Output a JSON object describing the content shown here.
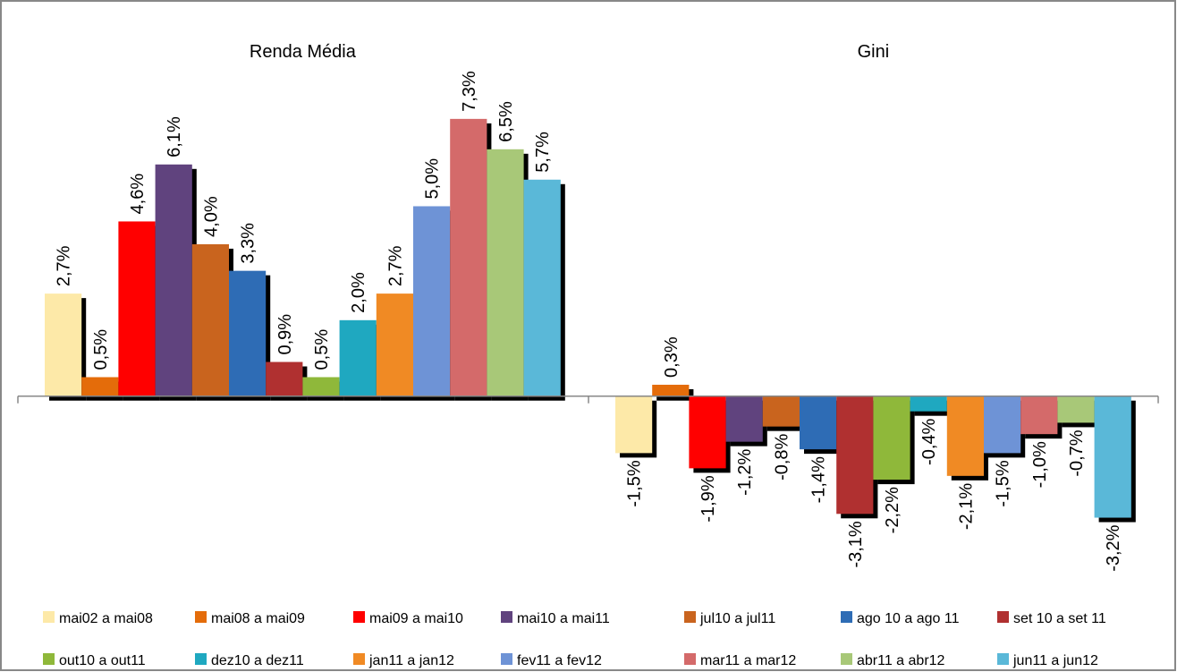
{
  "chart_data": {
    "type": "bar",
    "categories": [
      "Renda Média",
      "Gini"
    ],
    "ylim": [
      -3.8,
      9.7
    ],
    "series": [
      {
        "name": "mai02 a mai08",
        "color": "#fde9a8",
        "values": [
          2.7,
          -1.5
        ],
        "value_labels": [
          "2,7%",
          "-1,5%"
        ]
      },
      {
        "name": "mai08 a mai09",
        "color": "#e46c0a",
        "values": [
          0.5,
          0.3
        ],
        "value_labels": [
          "0,5%",
          "0,3%"
        ]
      },
      {
        "name": "mai09 a mai10",
        "color": "#ff0000",
        "values": [
          4.6,
          -1.9
        ],
        "value_labels": [
          "4,6%",
          "-1,9%"
        ]
      },
      {
        "name": "mai10 a mai11",
        "color": "#60437e",
        "values": [
          6.1,
          -1.2
        ],
        "value_labels": [
          "6,1%",
          "-1,2%"
        ]
      },
      {
        "name": "jul10 a jul11",
        "color": "#c9641e",
        "values": [
          4.0,
          -0.8
        ],
        "value_labels": [
          "4,0%",
          "-0,8%"
        ]
      },
      {
        "name": "ago 10 a ago 11",
        "color": "#2e6cb5",
        "values": [
          3.3,
          -1.4
        ],
        "value_labels": [
          "3,3%",
          "-1,4%"
        ]
      },
      {
        "name": "set 10 a set 11",
        "color": "#b03030",
        "values": [
          0.9,
          -3.1
        ],
        "value_labels": [
          "0,9%",
          "-3,1%"
        ]
      },
      {
        "name": "out10 a out11",
        "color": "#8fb83a",
        "values": [
          0.5,
          -2.2
        ],
        "value_labels": [
          "0,5%",
          "-2,2%"
        ]
      },
      {
        "name": "dez10 a dez11",
        "color": "#1fa8c0",
        "values": [
          2.0,
          -0.4
        ],
        "value_labels": [
          "2,0%",
          "-0,4%"
        ]
      },
      {
        "name": "jan11 a jan12",
        "color": "#f08a24",
        "values": [
          2.7,
          -2.1
        ],
        "value_labels": [
          "2,7%",
          "-2,1%"
        ]
      },
      {
        "name": "fev11 a fev12",
        "color": "#6e93d6",
        "values": [
          5.0,
          -1.5
        ],
        "value_labels": [
          "5,0%",
          "-1,5%"
        ]
      },
      {
        "name": "mar11 a mar12",
        "color": "#d46a6a",
        "values": [
          7.3,
          -1.0
        ],
        "value_labels": [
          "7,3%",
          "-1,0%"
        ]
      },
      {
        "name": "abr11 a abr12",
        "color": "#a8c878",
        "values": [
          6.5,
          -0.7
        ],
        "value_labels": [
          "6,5%",
          "-0,7%"
        ]
      },
      {
        "name": "jun11 a jun12",
        "color": "#5ab8d8",
        "values": [
          5.7,
          -3.2
        ],
        "value_labels": [
          "5,7%",
          "-3,2%"
        ]
      }
    ]
  }
}
